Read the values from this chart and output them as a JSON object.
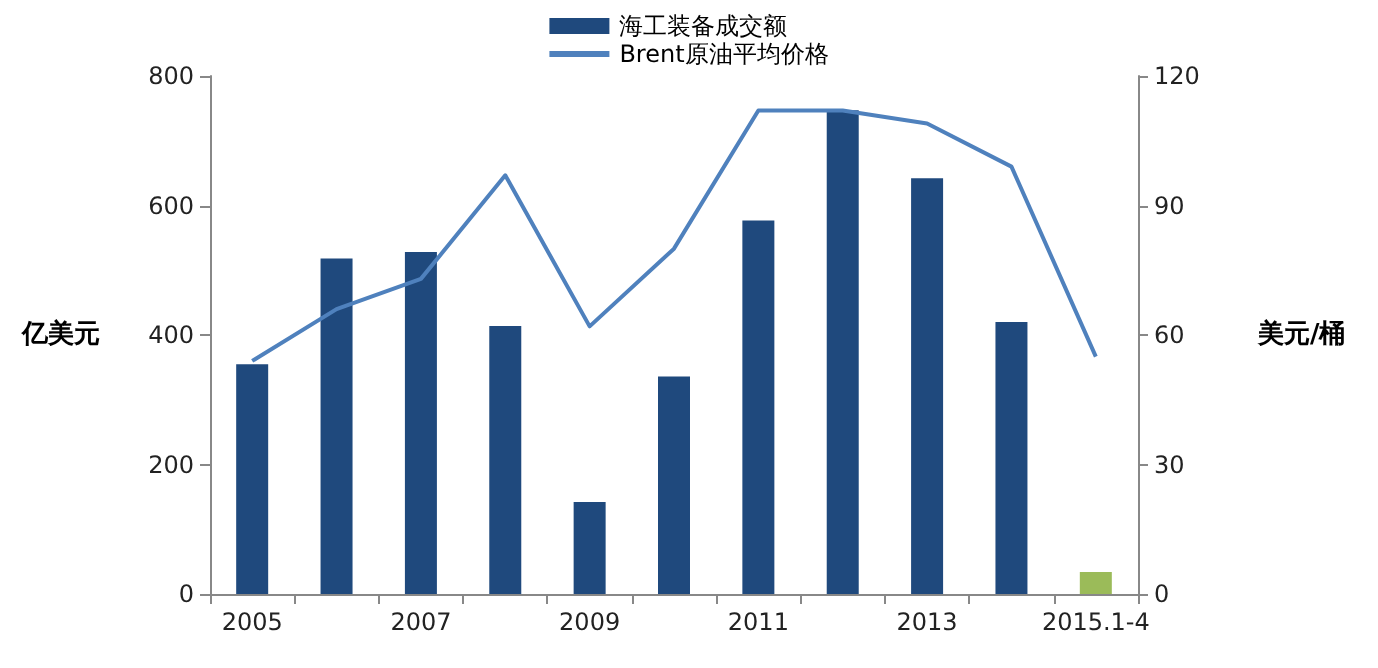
{
  "chart_data": {
    "type": "bar",
    "categories": [
      "2005",
      null,
      "2007",
      null,
      "2009",
      null,
      "2011",
      null,
      "2013",
      null,
      "2015.1-4"
    ],
    "series": [
      {
        "name": "海工装备成交额",
        "color": "#1f497d",
        "colors": [
          "#1f497d",
          "#1f497d",
          "#1f497d",
          "#1f497d",
          "#1f497d",
          "#1f497d",
          "#1f497d",
          "#1f497d",
          "#1f497d",
          "#1f497d",
          "#9bbb59"
        ],
        "values": [
          355,
          518,
          528,
          414,
          142,
          336,
          577,
          747,
          642,
          420,
          34
        ]
      },
      {
        "name": "Brent原油平均价格",
        "type": "line",
        "axis": "y2",
        "color": "#4f81bd",
        "values": [
          54,
          66,
          73,
          97,
          62,
          80,
          112,
          112,
          109,
          99,
          55
        ]
      }
    ],
    "ylabel": "亿美元",
    "y2label": "美元/桶",
    "ylim": [
      0,
      800
    ],
    "yticks": [
      0,
      200,
      400,
      600,
      800
    ],
    "y2lim": [
      0,
      120
    ],
    "y2ticks": [
      0,
      30,
      60,
      90,
      120
    ],
    "grid": false,
    "legend": "top",
    "marker": "none",
    "line_style": "solid"
  }
}
